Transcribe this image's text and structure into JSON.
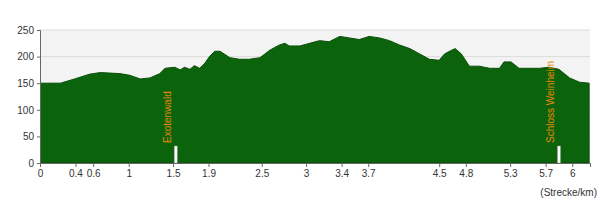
{
  "chart_data": {
    "type": "area",
    "color": "#0b640b",
    "grid": true,
    "x_label": "(Strecke/km)",
    "x": [
      0,
      0.23,
      0.39,
      0.56,
      0.68,
      0.9,
      1.01,
      1.13,
      1.24,
      1.35,
      1.41,
      1.52,
      1.58,
      1.63,
      1.69,
      1.74,
      1.8,
      1.86,
      1.91,
      1.97,
      2.03,
      2.14,
      2.25,
      2.36,
      2.48,
      2.59,
      2.7,
      2.76,
      2.81,
      2.93,
      3.04,
      3.15,
      3.26,
      3.38,
      3.49,
      3.6,
      3.71,
      3.83,
      3.94,
      4.05,
      4.17,
      4.28,
      4.39,
      4.5,
      4.56,
      4.64,
      4.68,
      4.75,
      4.84,
      4.95,
      5.07,
      5.18,
      5.23,
      5.31,
      5.4,
      5.63,
      5.74,
      5.85,
      5.97,
      6.08,
      6.19
    ],
    "values": [
      150,
      150,
      158,
      167,
      170,
      168,
      165,
      158,
      160,
      168,
      178,
      180,
      175,
      180,
      176,
      183,
      178,
      188,
      200,
      210,
      210,
      198,
      195,
      195,
      198,
      212,
      222,
      225,
      220,
      220,
      225,
      230,
      228,
      238,
      235,
      232,
      238,
      235,
      230,
      222,
      215,
      205,
      195,
      193,
      205,
      212,
      215,
      205,
      182,
      182,
      178,
      178,
      190,
      190,
      178,
      178,
      180,
      176,
      160,
      152,
      150
    ],
    "xlim": [
      0,
      6.2
    ],
    "xticks": [
      0,
      0.4,
      0.6,
      1,
      1.5,
      1.9,
      2.5,
      3,
      3.4,
      3.7,
      4.5,
      4.8,
      5.3,
      5.7,
      6
    ],
    "ylim": [
      0,
      250
    ],
    "yticks": [
      0,
      50,
      100,
      150,
      200,
      250
    ],
    "annotations": [
      {
        "x": 1.53,
        "label": "Exotenwald"
      },
      {
        "x": 5.85,
        "label": "Schloss Weinheim"
      }
    ]
  }
}
